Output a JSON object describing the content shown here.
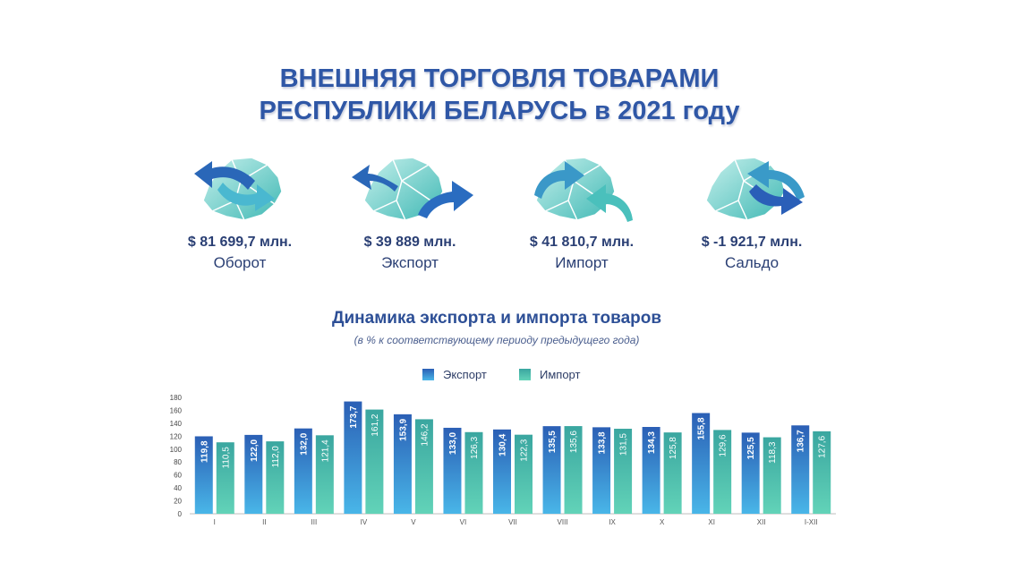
{
  "header": {
    "title_line1": "ВНЕШНЯЯ ТОРГОВЛЯ ТОВАРАМИ",
    "title_line2": "РЕСПУБЛИКИ БЕЛАРУСЬ в 2021 году"
  },
  "kpis": [
    {
      "value": "$ 81 699,7 млн.",
      "label": "Оборот"
    },
    {
      "value": "$ 39 889 млн.",
      "label": "Экспорт"
    },
    {
      "value": "$ 41 810,7 млн.",
      "label": "Импорт"
    },
    {
      "value": "$ -1 921,7 млн.",
      "label": "Сальдо"
    }
  ],
  "colors": {
    "export_top": "#2b5fb5",
    "export_bottom": "#49b6e8",
    "import_top": "#3aa6a0",
    "import_bottom": "#62d3b8",
    "map_light": "#a8e6e2",
    "map_dark": "#3fb8b4",
    "arrow_dark": "#2560b0",
    "arrow_light": "#49c0cc"
  },
  "chart_data": {
    "type": "bar",
    "title": "Динамика экспорта и импорта товаров",
    "subtitle": "(в % к соответствующему периоду предыдущего года)",
    "categories": [
      "I",
      "II",
      "III",
      "IV",
      "V",
      "VI",
      "VII",
      "VIII",
      "IX",
      "X",
      "XI",
      "XII",
      "I-XII"
    ],
    "series": [
      {
        "name": "Экспорт",
        "values": [
          119.8,
          122.0,
          132.0,
          173.7,
          153.9,
          133.0,
          130.4,
          135.5,
          133.8,
          134.3,
          155.8,
          125.5,
          136.7
        ],
        "labels": [
          "119,8",
          "122,0",
          "132,0",
          "173,7",
          "153,9",
          "133,0",
          "130,4",
          "135,5",
          "133,8",
          "134,3",
          "155,8",
          "125,5",
          "136,7"
        ]
      },
      {
        "name": "Импорт",
        "values": [
          110.5,
          112.0,
          121.4,
          161.2,
          146.2,
          126.3,
          122.3,
          135.6,
          131.5,
          125.8,
          129.6,
          118.3,
          127.6
        ],
        "labels": [
          "110,5",
          "112,0",
          "121,4",
          "161,2",
          "146,2",
          "126,3",
          "122,3",
          "135,6",
          "131,5",
          "125,8",
          "129,6",
          "118,3",
          "127,6"
        ]
      }
    ],
    "ylim": [
      0,
      180
    ],
    "yticks": [
      "0",
      "20",
      "40",
      "60",
      "80",
      "100",
      "120",
      "140",
      "160",
      "180"
    ],
    "legend": "top-center",
    "grid": false
  }
}
